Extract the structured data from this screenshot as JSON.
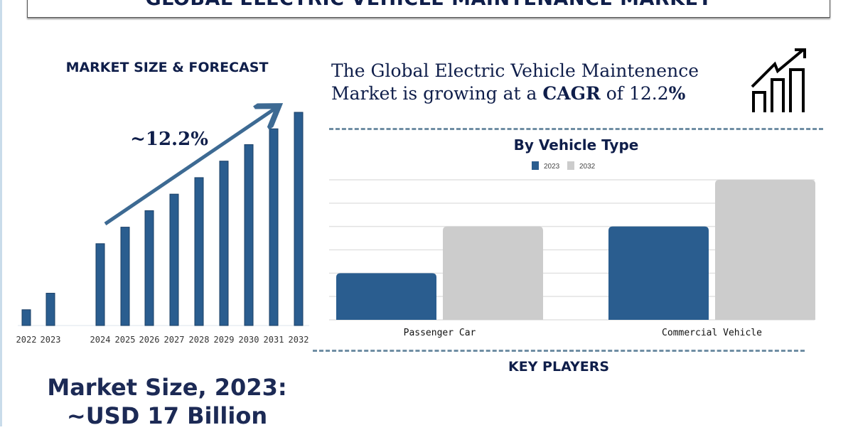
{
  "header": {
    "title": "GLOBAL ELECTRIC VEHICLE MAINTENANCE MARKET"
  },
  "left": {
    "heading": "MARKET SIZE & FORECAST",
    "growth_label": "~12.2%",
    "market_size_line1": "Market Size, 2023:",
    "market_size_line2": "~USD 17 Billion"
  },
  "cagr": {
    "text_part1": "The Global Electric Vehicle Maintenence Market is growing at a ",
    "text_bold": "CAGR",
    "text_part2": " of 12.2",
    "text_pct": "%",
    "icon": "growth-chart-icon"
  },
  "key_players": {
    "heading": "KEY PLAYERS"
  },
  "colors": {
    "navy": "#0f1e4a",
    "bar_blue": "#2a5d8f",
    "bar_gray": "#cccccc",
    "dash": "#6f8ea4"
  },
  "chart_data": [
    {
      "type": "bar",
      "title": "",
      "categories": [
        "2022",
        "2023",
        "2024",
        "2025",
        "2026",
        "2027",
        "2028",
        "2029",
        "2030",
        "2031",
        "2032"
      ],
      "values": [
        22,
        45,
        114,
        137,
        160,
        183,
        206,
        229,
        252,
        274,
        297
      ],
      "relative_values_unitless": true,
      "trend_arrow_label": "~12.2%",
      "grid": false
    },
    {
      "type": "bar",
      "title": "By Vehicle Type",
      "categories": [
        "Passenger Car",
        "Commercial Vehicle"
      ],
      "series": [
        {
          "name": "2023",
          "values": [
            2,
            4
          ],
          "color": "#2a5d8f"
        },
        {
          "name": "2032",
          "values": [
            4,
            6
          ],
          "color": "#cccccc"
        }
      ],
      "ylim": [
        0,
        6
      ],
      "grid": true,
      "legend": "top-center"
    }
  ]
}
